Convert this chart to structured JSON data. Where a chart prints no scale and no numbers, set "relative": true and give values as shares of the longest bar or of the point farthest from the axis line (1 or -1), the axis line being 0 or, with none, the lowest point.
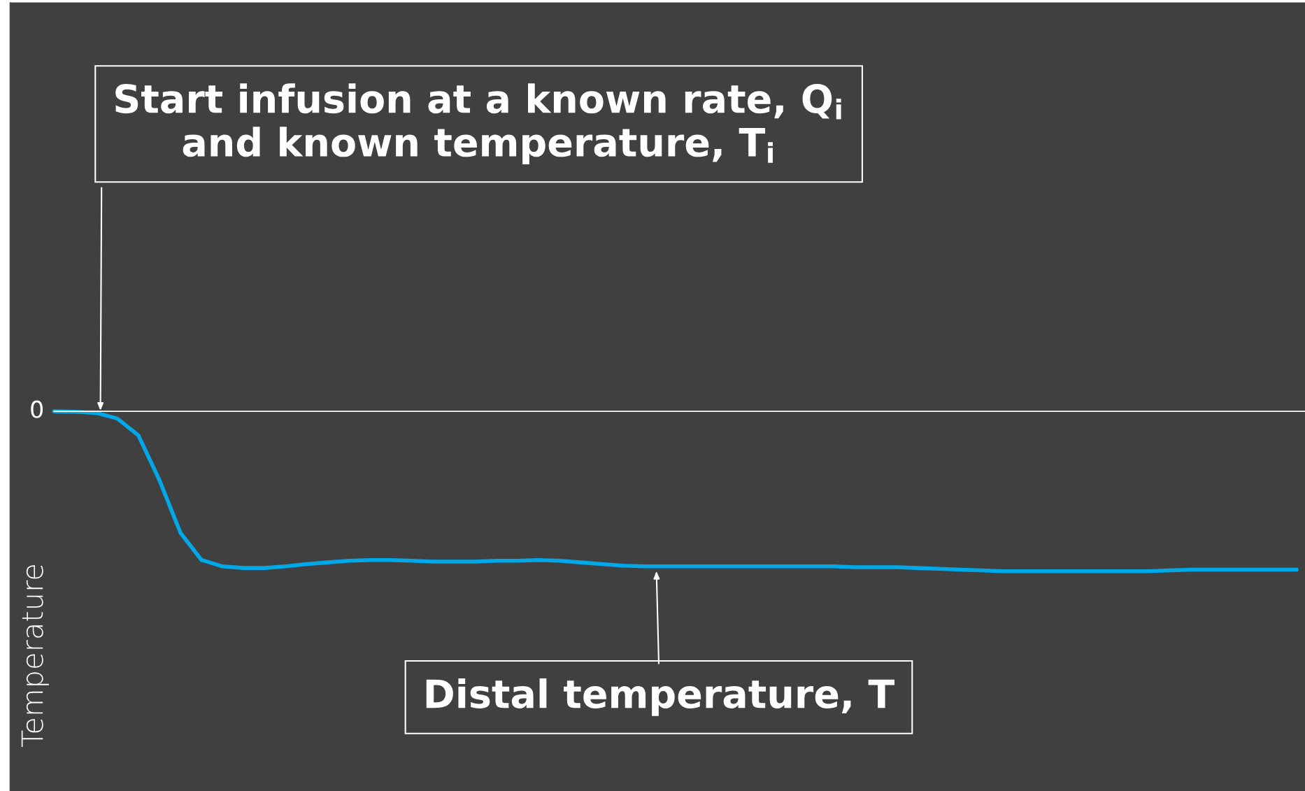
{
  "chart_data": {
    "type": "line",
    "relative": true,
    "ylabel": "Temperature",
    "color": "#00a8e8",
    "legend": false,
    "marker": "none",
    "line_style": "solid",
    "tick_labels": "y",
    "categories": [
      null,
      null,
      null,
      null,
      null,
      null,
      null,
      null,
      null,
      null,
      null,
      null,
      null,
      null,
      null,
      null,
      null,
      null,
      null,
      null,
      null,
      null,
      null,
      null,
      null,
      null,
      null,
      null,
      null,
      null,
      null,
      null,
      null,
      null,
      null,
      null,
      null,
      null,
      null,
      null,
      null,
      null,
      null,
      null,
      null,
      null,
      null,
      null,
      null,
      null,
      null,
      null,
      null,
      null,
      null,
      null,
      null,
      null,
      null,
      null
    ],
    "values": [
      0,
      -0.003,
      -0.01,
      -0.045,
      -0.15,
      -0.43,
      -0.76,
      -0.93,
      -0.97,
      -0.98,
      -0.98,
      -0.97,
      -0.955,
      -0.945,
      -0.935,
      -0.93,
      -0.93,
      -0.935,
      -0.94,
      -0.94,
      -0.94,
      -0.935,
      -0.935,
      -0.93,
      -0.935,
      -0.945,
      -0.955,
      -0.965,
      -0.97,
      -0.97,
      -0.97,
      -0.97,
      -0.97,
      -0.97,
      -0.97,
      -0.97,
      -0.97,
      -0.97,
      -0.975,
      -0.975,
      -0.975,
      -0.98,
      -0.985,
      -0.99,
      -0.995,
      -1,
      -1,
      -1,
      -1,
      -1,
      -1,
      -1,
      -1,
      -0.995,
      -0.99,
      -0.99,
      -0.99,
      -0.99,
      -0.99,
      -0.99
    ],
    "annotations": [
      "0",
      "Start infusion at a known rate, Q$_{i}$\nand known temperature, T$_{i}$",
      "Distal temperature, T"
    ]
  }
}
